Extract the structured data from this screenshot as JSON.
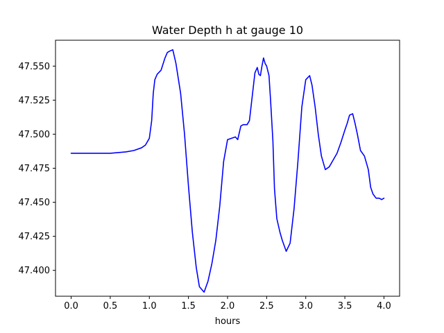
{
  "chart_data": {
    "type": "line",
    "title": "Water Depth h at gauge 10",
    "xlabel": "hours",
    "ylabel": "",
    "xlim": [
      -0.2,
      4.2
    ],
    "ylim": [
      47.381,
      47.569
    ],
    "x_ticks": [
      0.0,
      0.5,
      1.0,
      1.5,
      2.0,
      2.5,
      3.0,
      3.5,
      4.0
    ],
    "x_tick_labels": [
      "0.0",
      "0.5",
      "1.0",
      "1.5",
      "2.0",
      "2.5",
      "3.0",
      "3.5",
      "4.0"
    ],
    "y_ticks": [
      47.4,
      47.425,
      47.45,
      47.475,
      47.5,
      47.525,
      47.55
    ],
    "y_tick_labels": [
      "47.400",
      "47.425",
      "47.450",
      "47.475",
      "47.500",
      "47.525",
      "47.550"
    ],
    "grid": false,
    "colors": {
      "series": "#0000ff",
      "axes": "#000000",
      "background": "#ffffff"
    },
    "series": [
      {
        "name": "",
        "x": [
          0.0,
          0.3,
          0.5,
          0.7,
          0.8,
          0.9,
          0.95,
          1.0,
          1.03,
          1.05,
          1.07,
          1.1,
          1.15,
          1.2,
          1.23,
          1.26,
          1.3,
          1.34,
          1.4,
          1.45,
          1.5,
          1.55,
          1.6,
          1.64,
          1.7,
          1.75,
          1.8,
          1.85,
          1.9,
          1.95,
          2.0,
          2.05,
          2.1,
          2.13,
          2.17,
          2.2,
          2.25,
          2.28,
          2.32,
          2.35,
          2.38,
          2.4,
          2.42,
          2.44,
          2.46,
          2.48,
          2.5,
          2.53,
          2.55,
          2.58,
          2.6,
          2.63,
          2.67,
          2.7,
          2.75,
          2.8,
          2.85,
          2.9,
          2.95,
          3.0,
          3.05,
          3.08,
          3.12,
          3.16,
          3.2,
          3.25,
          3.3,
          3.35,
          3.4,
          3.45,
          3.5,
          3.53,
          3.56,
          3.6,
          3.63,
          3.66,
          3.7,
          3.75,
          3.8,
          3.83,
          3.86,
          3.9,
          3.94,
          3.97,
          4.0
        ],
        "y": [
          47.486,
          47.486,
          47.486,
          47.487,
          47.488,
          47.49,
          47.492,
          47.497,
          47.51,
          47.53,
          47.54,
          47.544,
          47.547,
          47.556,
          47.56,
          47.561,
          47.562,
          47.552,
          47.53,
          47.5,
          47.462,
          47.428,
          47.402,
          47.388,
          47.384,
          47.392,
          47.405,
          47.422,
          47.447,
          47.48,
          47.496,
          47.497,
          47.498,
          47.496,
          47.506,
          47.507,
          47.507,
          47.51,
          47.53,
          47.545,
          47.549,
          47.544,
          47.543,
          47.55,
          47.556,
          47.552,
          47.55,
          47.543,
          47.525,
          47.495,
          47.46,
          47.438,
          47.428,
          47.422,
          47.414,
          47.42,
          47.445,
          47.48,
          47.52,
          47.54,
          47.543,
          47.536,
          47.52,
          47.5,
          47.484,
          47.474,
          47.476,
          47.481,
          47.486,
          47.494,
          47.503,
          47.508,
          47.514,
          47.515,
          47.508,
          47.5,
          47.488,
          47.484,
          47.474,
          47.461,
          47.456,
          47.453,
          47.453,
          47.452,
          47.453
        ]
      }
    ]
  }
}
